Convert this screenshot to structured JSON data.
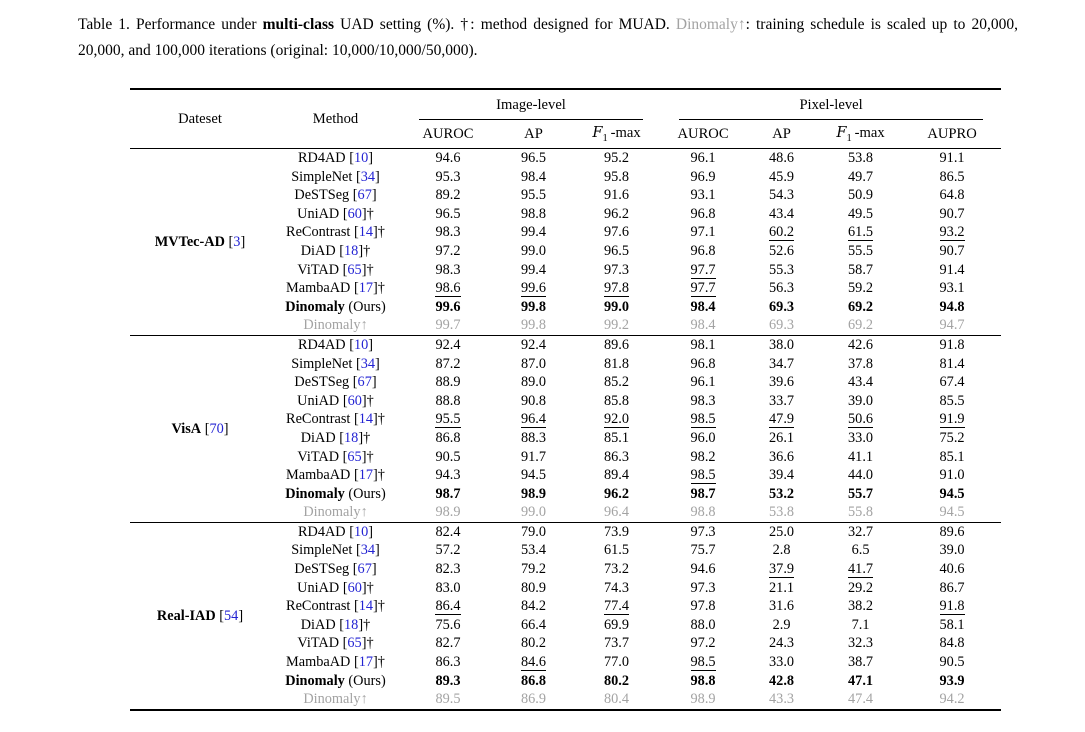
{
  "colors": {
    "citation_blue": "#2323d3",
    "muted_gray": "#a3a3a3",
    "text": "#000000",
    "background": "#ffffff"
  },
  "caption": {
    "segments": [
      {
        "t": "Table 1. Performance under "
      },
      {
        "t": "multi-class",
        "b": true
      },
      {
        "t": " UAD setting (%). †: method designed for MUAD. "
      },
      {
        "t": "Dinomaly↑",
        "gray": true
      },
      {
        "t": ": training schedule is scaled up to 20,000, 20,000, and 100,000 iterations (original: 10,000/10,000/50,000)."
      }
    ]
  },
  "table": {
    "dateset_header": "Dateset",
    "method_header": "Method",
    "image_level_header": "Image-level",
    "pixel_level_header": "Pixel-level",
    "sub_headers": [
      "AUROC",
      "AP",
      "F1-max",
      "AUROC",
      "AP",
      "F1-max",
      "AUPRO"
    ],
    "groups": [
      {
        "dataset": "MVTec-AD",
        "cite": "3",
        "rows": [
          {
            "name": "RD4AD",
            "cite": "10",
            "dagger": false,
            "vals": [
              "94.6",
              "96.5",
              "95.2",
              "96.1",
              "48.6",
              "53.8",
              "91.1"
            ],
            "u": []
          },
          {
            "name": "SimpleNet",
            "cite": "34",
            "dagger": false,
            "vals": [
              "95.3",
              "98.4",
              "95.8",
              "96.9",
              "45.9",
              "49.7",
              "86.5"
            ],
            "u": []
          },
          {
            "name": "DeSTSeg",
            "cite": "67",
            "dagger": false,
            "vals": [
              "89.2",
              "95.5",
              "91.6",
              "93.1",
              "54.3",
              "50.9",
              "64.8"
            ],
            "u": []
          },
          {
            "name": "UniAD",
            "cite": "60",
            "dagger": true,
            "vals": [
              "96.5",
              "98.8",
              "96.2",
              "96.8",
              "43.4",
              "49.5",
              "90.7"
            ],
            "u": []
          },
          {
            "name": "ReContrast",
            "cite": "14",
            "dagger": true,
            "vals": [
              "98.3",
              "99.4",
              "97.6",
              "97.1",
              "60.2",
              "61.5",
              "93.2"
            ],
            "u": [
              4,
              5,
              6
            ]
          },
          {
            "name": "DiAD",
            "cite": "18",
            "dagger": true,
            "vals": [
              "97.2",
              "99.0",
              "96.5",
              "96.8",
              "52.6",
              "55.5",
              "90.7"
            ],
            "u": []
          },
          {
            "name": "ViTAD",
            "cite": "65",
            "dagger": true,
            "vals": [
              "98.3",
              "99.4",
              "97.3",
              "97.7",
              "55.3",
              "58.7",
              "91.4"
            ],
            "u": [
              3
            ]
          },
          {
            "name": "MambaAD",
            "cite": "17",
            "dagger": true,
            "vals": [
              "98.6",
              "99.6",
              "97.8",
              "97.7",
              "56.3",
              "59.2",
              "93.1"
            ],
            "u": [
              0,
              1,
              2,
              3
            ]
          },
          {
            "name": "Dinomaly",
            "suffix": " (Ours)",
            "bold": true,
            "vals": [
              "99.6",
              "99.8",
              "99.0",
              "98.4",
              "69.3",
              "69.2",
              "94.8"
            ],
            "u": []
          },
          {
            "name": "Dinomaly↑",
            "gray": true,
            "vals": [
              "99.7",
              "99.8",
              "99.2",
              "98.4",
              "69.3",
              "69.2",
              "94.7"
            ],
            "u": []
          }
        ]
      },
      {
        "dataset": "VisA",
        "cite": "70",
        "rows": [
          {
            "name": "RD4AD",
            "cite": "10",
            "dagger": false,
            "vals": [
              "92.4",
              "92.4",
              "89.6",
              "98.1",
              "38.0",
              "42.6",
              "91.8"
            ],
            "u": []
          },
          {
            "name": "SimpleNet",
            "cite": "34",
            "dagger": false,
            "vals": [
              "87.2",
              "87.0",
              "81.8",
              "96.8",
              "34.7",
              "37.8",
              "81.4"
            ],
            "u": []
          },
          {
            "name": "DeSTSeg",
            "cite": "67",
            "dagger": false,
            "vals": [
              "88.9",
              "89.0",
              "85.2",
              "96.1",
              "39.6",
              "43.4",
              "67.4"
            ],
            "u": []
          },
          {
            "name": "UniAD",
            "cite": "60",
            "dagger": true,
            "vals": [
              "88.8",
              "90.8",
              "85.8",
              "98.3",
              "33.7",
              "39.0",
              "85.5"
            ],
            "u": []
          },
          {
            "name": "ReContrast",
            "cite": "14",
            "dagger": true,
            "vals": [
              "95.5",
              "96.4",
              "92.0",
              "98.5",
              "47.9",
              "50.6",
              "91.9"
            ],
            "u": [
              0,
              1,
              2,
              3,
              4,
              5,
              6
            ]
          },
          {
            "name": "DiAD",
            "cite": "18",
            "dagger": true,
            "vals": [
              "86.8",
              "88.3",
              "85.1",
              "96.0",
              "26.1",
              "33.0",
              "75.2"
            ],
            "u": []
          },
          {
            "name": "ViTAD",
            "cite": "65",
            "dagger": true,
            "vals": [
              "90.5",
              "91.7",
              "86.3",
              "98.2",
              "36.6",
              "41.1",
              "85.1"
            ],
            "u": []
          },
          {
            "name": "MambaAD",
            "cite": "17",
            "dagger": true,
            "vals": [
              "94.3",
              "94.5",
              "89.4",
              "98.5",
              "39.4",
              "44.0",
              "91.0"
            ],
            "u": [
              3
            ]
          },
          {
            "name": "Dinomaly",
            "suffix": " (Ours)",
            "bold": true,
            "vals": [
              "98.7",
              "98.9",
              "96.2",
              "98.7",
              "53.2",
              "55.7",
              "94.5"
            ],
            "u": []
          },
          {
            "name": "Dinomaly↑",
            "gray": true,
            "vals": [
              "98.9",
              "99.0",
              "96.4",
              "98.8",
              "53.8",
              "55.8",
              "94.5"
            ],
            "u": []
          }
        ]
      },
      {
        "dataset": "Real-IAD",
        "cite": "54",
        "rows": [
          {
            "name": "RD4AD",
            "cite": "10",
            "dagger": false,
            "vals": [
              "82.4",
              "79.0",
              "73.9",
              "97.3",
              "25.0",
              "32.7",
              "89.6"
            ],
            "u": []
          },
          {
            "name": "SimpleNet",
            "cite": "34",
            "dagger": false,
            "vals": [
              "57.2",
              "53.4",
              "61.5",
              "75.7",
              "2.8",
              "6.5",
              "39.0"
            ],
            "u": []
          },
          {
            "name": "DeSTSeg",
            "cite": "67",
            "dagger": false,
            "vals": [
              "82.3",
              "79.2",
              "73.2",
              "94.6",
              "37.9",
              "41.7",
              "40.6"
            ],
            "u": [
              4,
              5
            ]
          },
          {
            "name": "UniAD",
            "cite": "60",
            "dagger": true,
            "vals": [
              "83.0",
              "80.9",
              "74.3",
              "97.3",
              "21.1",
              "29.2",
              "86.7"
            ],
            "u": []
          },
          {
            "name": "ReContrast",
            "cite": "14",
            "dagger": true,
            "vals": [
              "86.4",
              "84.2",
              "77.4",
              "97.8",
              "31.6",
              "38.2",
              "91.8"
            ],
            "u": [
              0,
              2,
              6
            ]
          },
          {
            "name": "DiAD",
            "cite": "18",
            "dagger": true,
            "vals": [
              "75.6",
              "66.4",
              "69.9",
              "88.0",
              "2.9",
              "7.1",
              "58.1"
            ],
            "u": []
          },
          {
            "name": "ViTAD",
            "cite": "65",
            "dagger": true,
            "vals": [
              "82.7",
              "80.2",
              "73.7",
              "97.2",
              "24.3",
              "32.3",
              "84.8"
            ],
            "u": []
          },
          {
            "name": "MambaAD",
            "cite": "17",
            "dagger": true,
            "vals": [
              "86.3",
              "84.6",
              "77.0",
              "98.5",
              "33.0",
              "38.7",
              "90.5"
            ],
            "u": [
              1,
              3
            ]
          },
          {
            "name": "Dinomaly",
            "suffix": " (Ours)",
            "bold": true,
            "vals": [
              "89.3",
              "86.8",
              "80.2",
              "98.8",
              "42.8",
              "47.1",
              "93.9"
            ],
            "u": []
          },
          {
            "name": "Dinomaly↑",
            "gray": true,
            "vals": [
              "89.5",
              "86.9",
              "80.4",
              "98.9",
              "43.3",
              "47.4",
              "94.2"
            ],
            "u": []
          }
        ]
      }
    ]
  }
}
